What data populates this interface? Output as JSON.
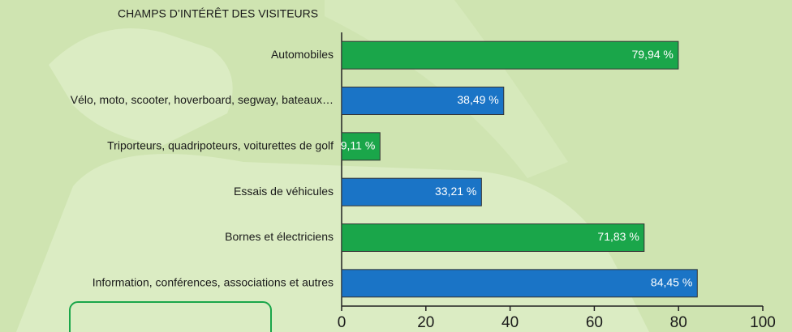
{
  "chart_data": {
    "type": "barh",
    "title": "CHAMPS D’INTÉRÊT DES VISITEURS",
    "categories": [
      "Automobiles",
      "Vélo, moto, scooter, hoverboard, segway, bateaux…",
      "Triporteurs, quadripoteurs, voiturettes de golf",
      "Essais de véhicules",
      "Bornes et électriciens",
      "Information, conférences, associations et autres"
    ],
    "values": [
      79.94,
      38.49,
      9.11,
      33.21,
      71.83,
      84.45
    ],
    "value_labels": [
      "79,94 %",
      "38,49 %",
      "9,11 %",
      "33,21 %",
      "71,83 %",
      "84,45 %"
    ],
    "colors": [
      "#1aa64a",
      "#1a74c6",
      "#1aa64a",
      "#1a74c6",
      "#1aa64a",
      "#1a74c6"
    ],
    "xlim": [
      0,
      100
    ],
    "xticks": [
      0,
      20,
      40,
      60,
      80,
      100
    ]
  }
}
